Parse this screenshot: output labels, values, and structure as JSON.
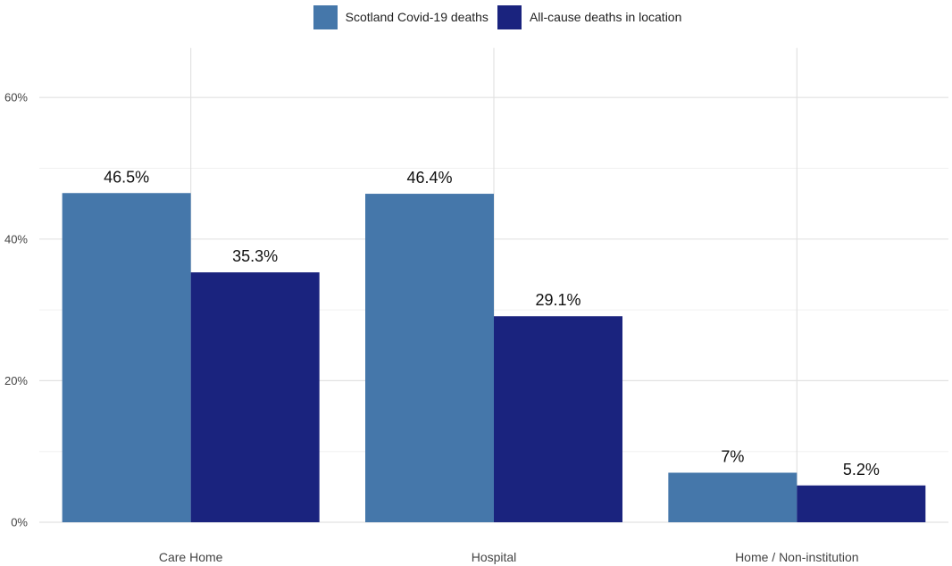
{
  "chart_data": {
    "type": "bar",
    "categories": [
      "Care Home",
      "Hospital",
      "Home / Non-institution"
    ],
    "series": [
      {
        "name": "Scotland Covid-19 deaths",
        "color": "#4577aa",
        "values": [
          46.5,
          46.4,
          7
        ],
        "labels": [
          "46.5%",
          "46.4%",
          "7%"
        ]
      },
      {
        "name": "All-cause deaths in location",
        "color": "#1a237e",
        "values": [
          35.3,
          29.1,
          5.2
        ],
        "labels": [
          "35.3%",
          "29.1%",
          "5.2%"
        ]
      }
    ],
    "y_ticks": [
      0,
      20,
      40,
      60
    ],
    "y_tick_labels": [
      "0%",
      "20%",
      "40%",
      "60%"
    ],
    "ylim": [
      0,
      67
    ],
    "grid": true,
    "legend_position": "top",
    "title": "",
    "xlabel": "",
    "ylabel": ""
  }
}
